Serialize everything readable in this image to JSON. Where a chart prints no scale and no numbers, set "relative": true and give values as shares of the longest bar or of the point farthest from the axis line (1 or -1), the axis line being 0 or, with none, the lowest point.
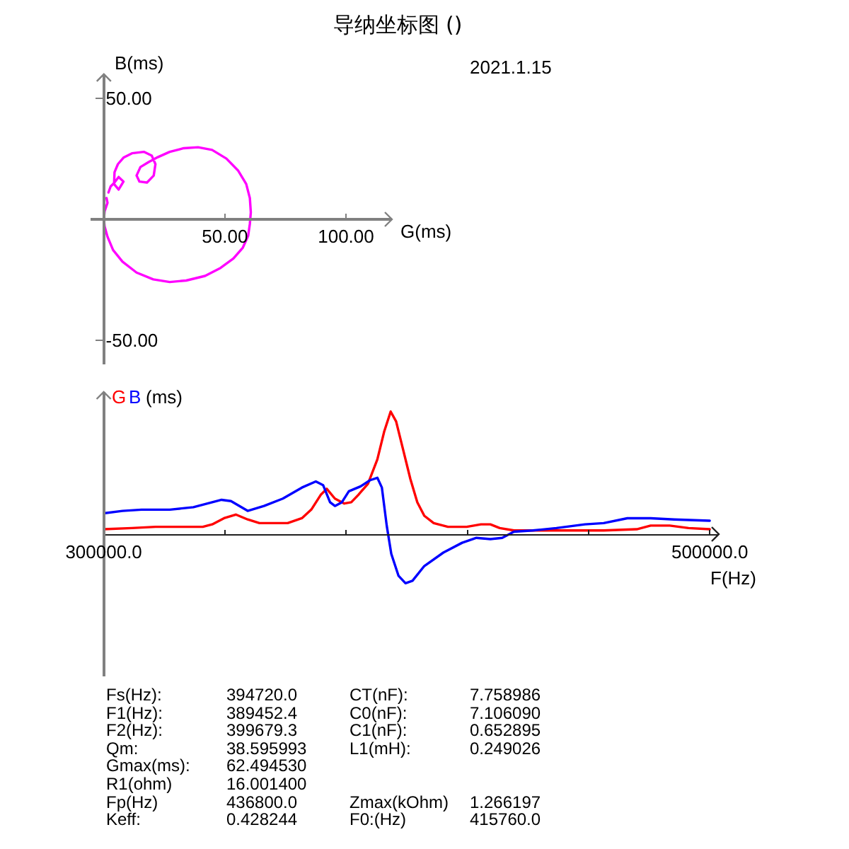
{
  "chart_data": [
    {
      "type": "line",
      "title": "导纳坐标图 ()",
      "xlabel": "G(ms)",
      "ylabel": "B(ms)",
      "annotations": [
        "2021.1.15"
      ],
      "xlim": [
        -5.5,
        119
      ],
      "ylim": [
        -60,
        60
      ],
      "xticks": [
        {
          "value": 50,
          "label": "50.00"
        },
        {
          "value": 100,
          "label": "100.00"
        }
      ],
      "yticks": [
        {
          "value": 50,
          "label": "50.00"
        },
        {
          "value": -50,
          "label": "-50.00"
        }
      ],
      "grid": false,
      "series": [
        {
          "color": "#ff00ff",
          "x": [
            1.9,
            2.8,
            4.2,
            6.1,
            8.1,
            6.1,
            4.2,
            4.4,
            5.8,
            8.1,
            11.6,
            16.5,
            19.8,
            21.3,
            20.6,
            17.8,
            14.7,
            13.5,
            15.1,
            18.4,
            22.3,
            27.2,
            33.0,
            38.9,
            44.7,
            50.6,
            55.5,
            58.8,
            60.3,
            60.7,
            60.3,
            59.6,
            57.4,
            53.5,
            48.2,
            41.8,
            34.0,
            27.2,
            20.4,
            13.5,
            7.7,
            3.8,
            1.5,
            0.3,
            0,
            0.3,
            1.5,
            1.1
          ],
          "values": [
            11.1,
            13.6,
            15.0,
            17.5,
            15.6,
            12.3,
            14.6,
            19.5,
            22.8,
            25.5,
            27.3,
            27.9,
            26.3,
            22.8,
            18.1,
            15.2,
            15.6,
            18.1,
            21.6,
            23.6,
            25.7,
            27.9,
            29.4,
            29.8,
            28.7,
            25.1,
            20.1,
            14.6,
            8.8,
            2.9,
            -1.9,
            -6.8,
            -11.7,
            -16.2,
            -20.1,
            -23.4,
            -25.3,
            -25.9,
            -24.8,
            -22.0,
            -17.5,
            -12.7,
            -7.2,
            -2.9,
            0,
            3.3,
            6.8,
            8.8
          ]
        }
      ]
    },
    {
      "type": "line",
      "relative": true,
      "xlabel": "F(Hz)",
      "ylabel": "(ms)",
      "xlim": [
        300000,
        503000
      ],
      "xticks": [
        {
          "value": 300000,
          "label": "300000.0"
        },
        {
          "value": 340000,
          "label": null
        },
        {
          "value": 380000,
          "label": null
        },
        {
          "value": 420000,
          "label": null
        },
        {
          "value": 460000,
          "label": null
        },
        {
          "value": 500000,
          "label": "500000.0"
        }
      ],
      "grid": false,
      "series": [
        {
          "name": "G",
          "color": "#ff0000",
          "x": [
            300000,
            309300,
            317100,
            324900,
            332700,
            335800,
            339700,
            343600,
            347500,
            351400,
            356000,
            360700,
            365400,
            368500,
            371600,
            373600,
            376300,
            379400,
            381700,
            384000,
            387200,
            390300,
            392600,
            394700,
            396500,
            398800,
            401200,
            403500,
            405800,
            408900,
            413600,
            419800,
            424500,
            427600,
            430700,
            435400,
            441600,
            449400,
            465000,
            475900,
            480500,
            486800,
            493000,
            500000
          ],
          "values": [
            0.04,
            0.05,
            0.06,
            0.06,
            0.06,
            0.08,
            0.13,
            0.16,
            0.12,
            0.09,
            0.09,
            0.09,
            0.13,
            0.2,
            0.32,
            0.37,
            0.29,
            0.25,
            0.26,
            0.32,
            0.41,
            0.61,
            0.84,
            1.0,
            0.92,
            0.69,
            0.45,
            0.26,
            0.15,
            0.09,
            0.06,
            0.06,
            0.08,
            0.08,
            0.05,
            0.03,
            0.03,
            0.03,
            0.03,
            0.04,
            0.07,
            0.07,
            0.05,
            0.04
          ]
        },
        {
          "name": "B",
          "color": "#0000ff",
          "x": [
            300000,
            306200,
            312500,
            321800,
            329600,
            338900,
            342000,
            347500,
            352900,
            359100,
            365400,
            370000,
            372400,
            374700,
            376300,
            378600,
            380900,
            384800,
            387900,
            390300,
            391800,
            393400,
            394900,
            397300,
            399600,
            401900,
            405800,
            412100,
            418300,
            423000,
            427600,
            431500,
            435400,
            441600,
            449400,
            458800,
            465000,
            472800,
            480500,
            488300,
            500000
          ],
          "values": [
            0.17,
            0.19,
            0.2,
            0.2,
            0.22,
            0.28,
            0.27,
            0.19,
            0.23,
            0.29,
            0.38,
            0.43,
            0.4,
            0.26,
            0.23,
            0.26,
            0.35,
            0.39,
            0.44,
            0.46,
            0.38,
            0.07,
            -0.16,
            -0.34,
            -0.4,
            -0.38,
            -0.26,
            -0.15,
            -0.07,
            -0.03,
            -0.04,
            -0.03,
            0.02,
            0.03,
            0.05,
            0.08,
            0.09,
            0.13,
            0.13,
            0.12,
            0.11
          ]
        }
      ]
    },
    {
      "type": "other",
      "annotations": [
        "Fs(Hz):",
        "394720.0",
        "CT(nF):",
        "7.758986",
        "F1(Hz):",
        "389452.4",
        "C0(nF):",
        "7.106090",
        "F2(Hz):",
        "399679.3",
        "C1(nF):",
        "0.652895",
        "Qm:",
        "38.595993",
        "L1(mH):",
        "0.249026",
        "Gmax(ms):",
        "62.494530",
        "R1(ohm)",
        "16.001400",
        "Fp(Hz)",
        "436800.0",
        "Zmax(kOhm)",
        "1.266197",
        "Keff:",
        "0.428244",
        "F0:(Hz)",
        "415760.0"
      ]
    }
  ]
}
